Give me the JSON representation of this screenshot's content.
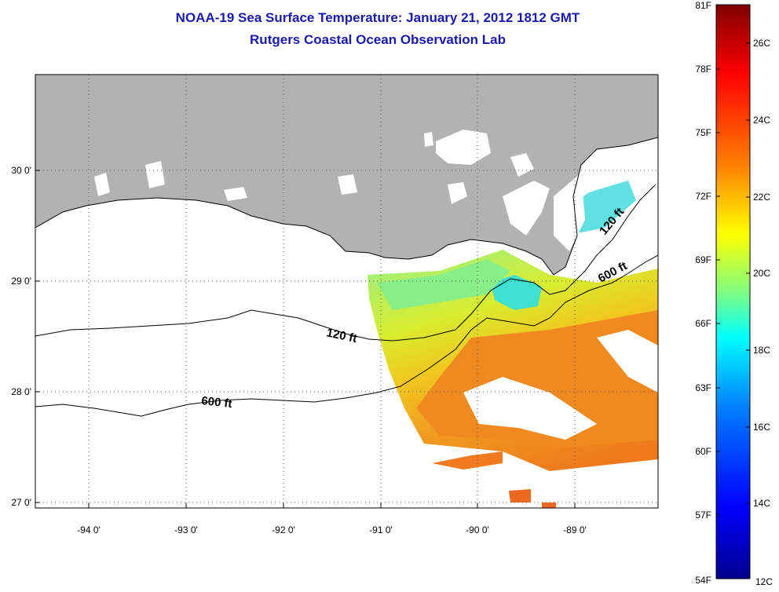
{
  "title_line1": "NOAA-19 Sea Surface Temperature:  January 21, 2012 1812 GMT",
  "title_line2": "Rutgers Coastal Ocean Observation Lab",
  "map": {
    "lon_labels": [
      "-94 0'",
      "-93 0'",
      "-92 0'",
      "-91 0'",
      "-90 0'",
      "-89 0'"
    ],
    "lat_labels": [
      "30 0'",
      "29 0'",
      "28 0'",
      "27 0'"
    ],
    "contours": [
      {
        "label": "120 ft"
      },
      {
        "label": "120 ft"
      },
      {
        "label": "600 ft"
      },
      {
        "label": "600 ft"
      }
    ],
    "colors": {
      "land": "#b2b2b2",
      "no_data": "#ffffff",
      "contour": "#000000"
    }
  },
  "colorbar": {
    "fahrenheit_labels": [
      "81F",
      "78F",
      "75F",
      "72F",
      "69F",
      "66F",
      "63F",
      "60F",
      "57F",
      "54F"
    ],
    "celsius_labels": [
      "26C",
      "24C",
      "22C",
      "20C",
      "18C",
      "16C",
      "14C",
      "12C"
    ],
    "colormap": [
      "#00008f",
      "#0000ff",
      "#0080ff",
      "#00ffff",
      "#80ff80",
      "#ffff00",
      "#ff8000",
      "#ff0000",
      "#800000"
    ]
  }
}
